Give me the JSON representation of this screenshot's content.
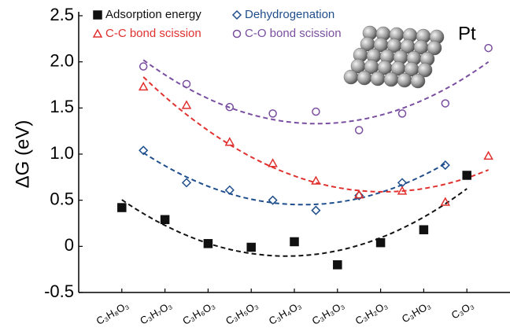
{
  "chart_data": {
    "type": "scatter",
    "ylabel": "ΔG (eV)",
    "annotation": "Pt",
    "xticks": [
      {
        "value": 1,
        "label": "C₃H₈O₃"
      },
      {
        "value": 2,
        "label": "C₃H₇O₃"
      },
      {
        "value": 3,
        "label": "C₃H₆O₃"
      },
      {
        "value": 4,
        "label": "C₃H₅O₃"
      },
      {
        "value": 5,
        "label": "C₃H₄O₃"
      },
      {
        "value": 6,
        "label": "C₃H₃O₃"
      },
      {
        "value": 7,
        "label": "C₃H₂O₃"
      },
      {
        "value": 8,
        "label": "C₃HO₃"
      },
      {
        "value": 9,
        "label": "C₃O₃"
      }
    ],
    "xlim": [
      0,
      10
    ],
    "ylim": [
      -0.5,
      2.5
    ],
    "yticks": [
      -0.5,
      0,
      0.5,
      {
        "value": 1,
        "label": "1.0"
      },
      1.5,
      {
        "value": 2,
        "label": "2.0"
      },
      2.5
    ],
    "series": [
      {
        "name": "Adsorption energy",
        "color": "#111111",
        "marker": "square",
        "filled": true,
        "x": [
          1,
          2,
          3,
          4,
          5,
          6,
          7,
          8,
          9
        ],
        "values": [
          0.42,
          0.29,
          0.03,
          -0.01,
          0.05,
          -0.2,
          0.04,
          0.18,
          0.77
        ]
      },
      {
        "name": "Dehydrogenation",
        "color": "#1f4e8c",
        "marker": "diamond",
        "filled": false,
        "x": [
          1.5,
          2.5,
          3.5,
          4.5,
          5.5,
          6.5,
          7.5,
          8.5
        ],
        "values": [
          1.04,
          0.69,
          0.61,
          0.5,
          0.39,
          0.55,
          0.69,
          0.88
        ]
      },
      {
        "name": "C-C bond scission",
        "color": "#e0312f",
        "marker": "triangle",
        "filled": false,
        "x": [
          1.5,
          2.5,
          3.5,
          4.5,
          5.5,
          6.5,
          7.5,
          8.5,
          9.5
        ],
        "values": [
          1.73,
          1.53,
          1.13,
          0.9,
          0.71,
          0.56,
          0.6,
          0.48,
          0.98
        ]
      },
      {
        "name": "C-O bond scission",
        "color": "#7a4ea0",
        "marker": "circle",
        "filled": false,
        "x": [
          1.5,
          2.5,
          3.5,
          4.5,
          5.5,
          6.5,
          7.5,
          8.5,
          9.5
        ],
        "values": [
          1.95,
          1.76,
          1.51,
          1.44,
          1.46,
          1.26,
          1.44,
          1.55,
          2.15
        ]
      }
    ]
  }
}
